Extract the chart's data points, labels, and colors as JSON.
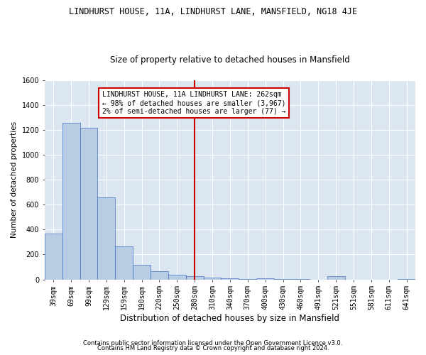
{
  "title": "LINDHURST HOUSE, 11A, LINDHURST LANE, MANSFIELD, NG18 4JE",
  "subtitle": "Size of property relative to detached houses in Mansfield",
  "xlabel": "Distribution of detached houses by size in Mansfield",
  "ylabel": "Number of detached properties",
  "footer1": "Contains HM Land Registry data © Crown copyright and database right 2024.",
  "footer2": "Contains public sector information licensed under the Open Government Licence v3.0.",
  "categories": [
    "39sqm",
    "69sqm",
    "99sqm",
    "129sqm",
    "159sqm",
    "190sqm",
    "220sqm",
    "250sqm",
    "280sqm",
    "310sqm",
    "340sqm",
    "370sqm",
    "400sqm",
    "430sqm",
    "460sqm",
    "491sqm",
    "521sqm",
    "551sqm",
    "581sqm",
    "611sqm",
    "641sqm"
  ],
  "values": [
    370,
    1260,
    1220,
    660,
    265,
    115,
    65,
    35,
    25,
    15,
    10,
    5,
    10,
    3,
    2,
    0,
    28,
    0,
    0,
    0,
    2
  ],
  "bar_color": "#b8cce4",
  "bar_edge_color": "#4472c4",
  "bg_color": "#dce6f1",
  "grid_color": "#ffffff",
  "property_line_color": "#cc0000",
  "annotation_text": "LINDHURST HOUSE, 11A LINDHURST LANE: 262sqm\n← 98% of detached houses are smaller (3,967)\n2% of semi-detached houses are larger (77) →",
  "annotation_box_color": "#cc0000",
  "ylim": [
    0,
    1600
  ],
  "yticks": [
    0,
    200,
    400,
    600,
    800,
    1000,
    1200,
    1400,
    1600
  ],
  "title_fontsize": 8.5,
  "subtitle_fontsize": 8.5,
  "ylabel_fontsize": 7.5,
  "xlabel_fontsize": 8.5,
  "tick_fontsize": 7,
  "footer_fontsize": 6,
  "annotation_fontsize": 7
}
